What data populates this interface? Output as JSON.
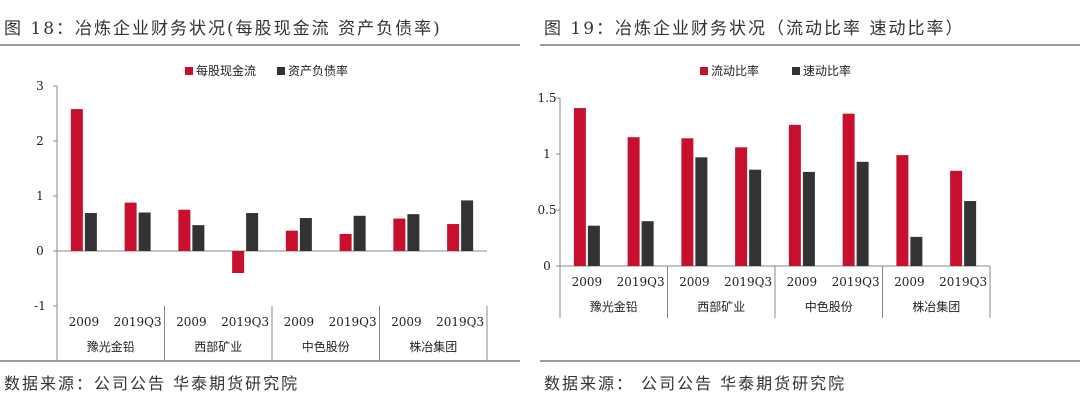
{
  "charts": [
    {
      "figure_title": "图 18：冶炼企业财务状况(每股现金流 资产负债率)",
      "source": "数据来源：公司公告 华泰期货研究院",
      "chart_data": {
        "type": "bar",
        "companies": [
          "豫光金铅",
          "西部矿业",
          "中色股份",
          "株冶集团"
        ],
        "periods": [
          "2009",
          "2019Q3"
        ],
        "categories": [
          "2009",
          "2019Q3",
          "2009",
          "2019Q3",
          "2009",
          "2019Q3",
          "2009",
          "2019Q3"
        ],
        "series": [
          {
            "name": "每股现金流",
            "color": "#C8102E",
            "values": [
              2.58,
              0.88,
              0.75,
              -0.4,
              0.37,
              0.31,
              0.59,
              0.49
            ]
          },
          {
            "name": "资产负债率",
            "color": "#333333",
            "values": [
              0.69,
              0.7,
              0.47,
              0.69,
              0.6,
              0.64,
              0.67,
              0.92
            ]
          }
        ],
        "ylim": [
          -1,
          3
        ],
        "yticks": [
          -1,
          0,
          1,
          2,
          3
        ],
        "ytick_labels": [
          "-1",
          "0",
          "1",
          "2",
          "3"
        ],
        "legend_position": "top",
        "grid": false
      }
    },
    {
      "figure_title": "图 19：冶炼企业财务状况（流动比率 速动比率）",
      "source": "数据来源： 公司公告 华泰期货研究院",
      "chart_data": {
        "type": "bar",
        "companies": [
          "豫光金铅",
          "西部矿业",
          "中色股份",
          "株冶集团"
        ],
        "periods": [
          "2009",
          "2019Q3"
        ],
        "categories": [
          "2009",
          "2019Q3",
          "2009",
          "2019Q3",
          "2009",
          "2019Q3",
          "2009",
          "2019Q3"
        ],
        "series": [
          {
            "name": "流动比率",
            "color": "#C8102E",
            "values": [
              1.41,
              1.15,
              1.14,
              1.06,
              1.26,
              1.36,
              0.99,
              0.85
            ]
          },
          {
            "name": "速动比率",
            "color": "#333333",
            "values": [
              0.36,
              0.4,
              0.97,
              0.86,
              0.84,
              0.93,
              0.26,
              0.58
            ]
          }
        ],
        "ylim": [
          0,
          1.5
        ],
        "yticks": [
          0,
          0.5,
          1,
          1.5
        ],
        "ytick_labels": [
          "0",
          "0.5",
          "1",
          "1.5"
        ],
        "legend_position": "top",
        "grid": false
      }
    }
  ]
}
